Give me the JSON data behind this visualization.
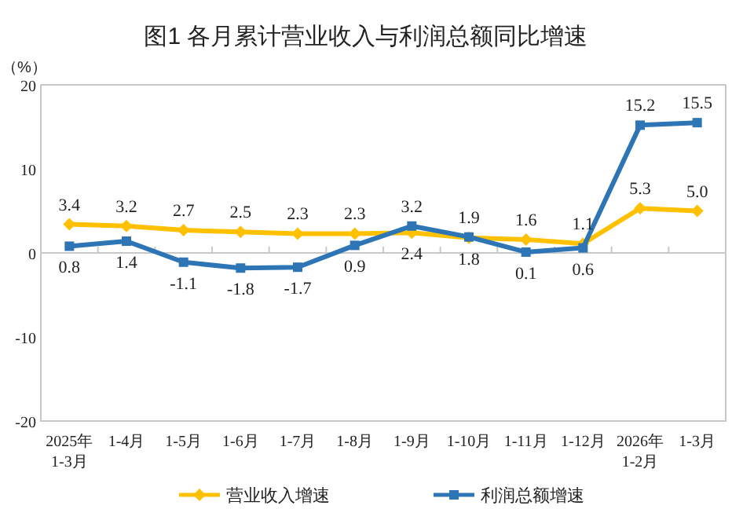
{
  "chart_data": {
    "type": "line",
    "title": "图1  各月累计营业收入与利润总额同比增速",
    "ylabel": "（%）",
    "categories": [
      "2025年\n1-3月",
      "1-4月",
      "1-5月",
      "1-6月",
      "1-7月",
      "1-8月",
      "1-9月",
      "1-10月",
      "1-11月",
      "1-12月",
      "2026年\n1-2月",
      "1-3月"
    ],
    "series": [
      {
        "name": "营业收入增速",
        "color": "#ffc000",
        "marker": "diamond",
        "values": [
          3.4,
          3.2,
          2.7,
          2.5,
          2.3,
          2.3,
          2.4,
          1.8,
          1.6,
          1.1,
          5.3,
          5.0
        ],
        "value_labels": [
          "3.4",
          "3.2",
          "2.7",
          "2.5",
          "2.3",
          "2.3",
          "2.4",
          "1.8",
          "1.6",
          "1.1",
          "5.3",
          "5.0"
        ]
      },
      {
        "name": "利润总额增速",
        "color": "#2e75b6",
        "marker": "square",
        "values": [
          0.8,
          1.4,
          -1.1,
          -1.8,
          -1.7,
          0.9,
          3.2,
          1.9,
          0.1,
          0.6,
          15.2,
          15.5
        ],
        "value_labels": [
          "0.8",
          "1.4",
          "-1.1",
          "-1.8",
          "-1.7",
          "0.9",
          "3.2",
          "1.9",
          "0.1",
          "0.6",
          "15.2",
          "15.5"
        ]
      }
    ],
    "ylim": [
      -20,
      20
    ],
    "yticks": [
      -20,
      -10,
      0,
      10,
      20
    ],
    "legend": "bottom"
  }
}
